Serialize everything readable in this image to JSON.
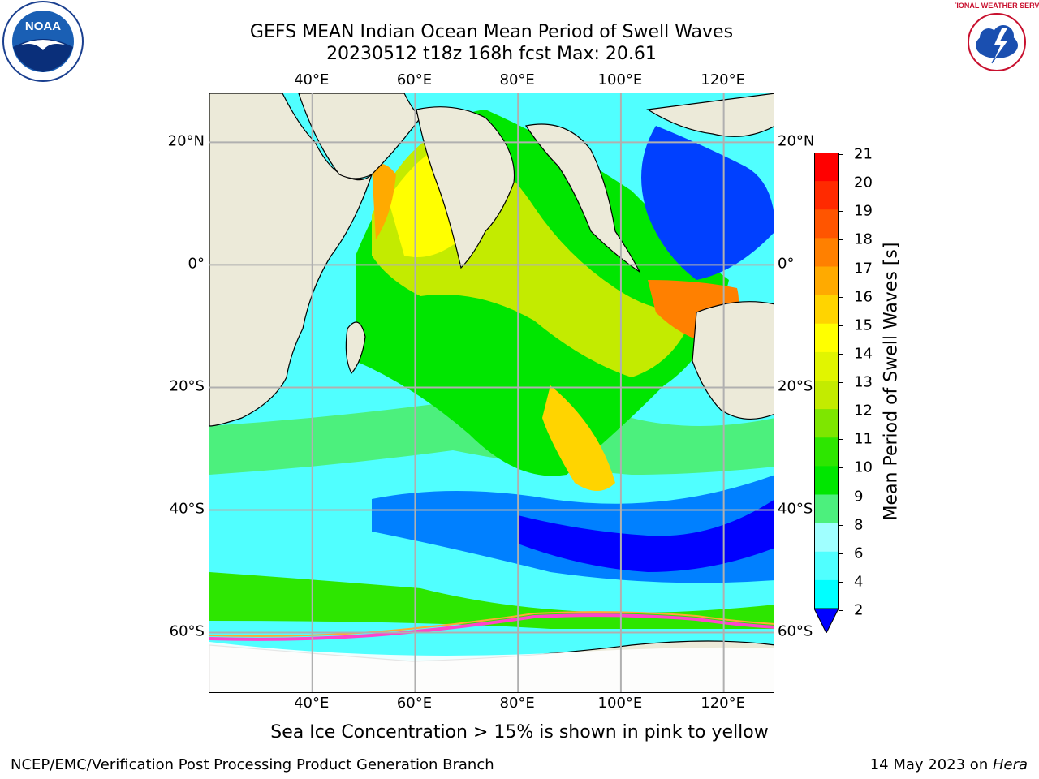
{
  "header": {
    "title_line1": "GEFS MEAN Indian Ocean Mean Period of Swell Waves",
    "title_line2": "20230512 t18z 168h fcst   Max: 20.61"
  },
  "logos": {
    "left": "noaa-logo",
    "right": "national-weather-service-logo",
    "left_text": "NOAA",
    "right_text": "NATIONAL WEATHER SERVICE"
  },
  "map": {
    "projection": "equirectangular",
    "lon_range": [
      20,
      130
    ],
    "lat_range": [
      -70,
      28
    ],
    "lon_ticks": [
      "40°E",
      "60°E",
      "80°E",
      "100°E",
      "120°E"
    ],
    "lat_ticks_left": [
      "20°N",
      "0°",
      "20°S",
      "40°S",
      "60°S"
    ],
    "lat_ticks_right": [
      "20°N",
      "0°",
      "20°S",
      "40°S",
      "60°S"
    ],
    "land_color": "#ecead9",
    "ice_color": "#ffffff",
    "grid": true
  },
  "colorbar": {
    "title": "Mean Period of Swell Waves [s]",
    "labels": [
      "21",
      "20",
      "19",
      "18",
      "17",
      "16",
      "15",
      "14",
      "13",
      "12",
      "11",
      "10",
      "9",
      "8",
      "6",
      "4",
      "2"
    ],
    "colors": [
      "#ff0000",
      "#ff2a00",
      "#ff5500",
      "#ff8000",
      "#ffaa00",
      "#ffd400",
      "#ffff00",
      "#e1f500",
      "#c3eb00",
      "#7ee600",
      "#2de600",
      "#00e600",
      "#4cf07d",
      "#a0ffff",
      "#50ffff",
      "#00ffff",
      "#0080ff"
    ],
    "extend_color": "#0000ff"
  },
  "note": "Sea Ice Concentration > 15% is shown in pink to yellow",
  "footer": {
    "left": "NCEP/EMC/Verification Post Processing Product Generation Branch",
    "right_date": "14 May 2023 on ",
    "right_host": "Hera"
  }
}
